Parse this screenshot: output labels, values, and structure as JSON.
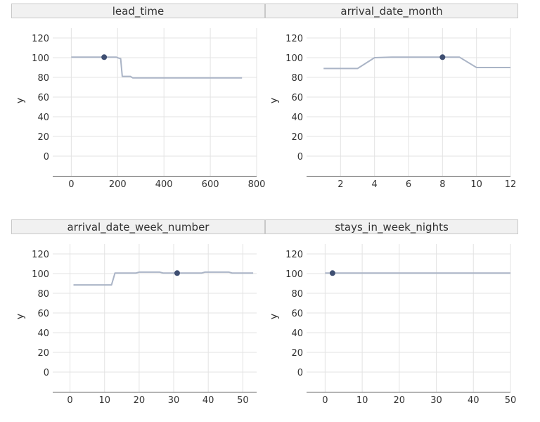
{
  "chart_data": [
    {
      "type": "line",
      "title": "lead_time",
      "xlabel": "",
      "ylabel": "y",
      "xlim": [
        -80,
        800
      ],
      "ylim": [
        -20,
        130
      ],
      "xticks": [
        "0",
        "200",
        "400",
        "600",
        "800"
      ],
      "yticks": [
        "0",
        "20",
        "40",
        "60",
        "80",
        "100",
        "120"
      ],
      "grid": true,
      "series": [
        {
          "x": [
            0,
            145,
            195,
            205,
            213,
            220,
            255,
            265,
            737
          ],
          "y": [
            100.5,
            100.5,
            100.5,
            99.5,
            99,
            81,
            81,
            79.5,
            79.5
          ]
        }
      ],
      "highlight": {
        "x": 142,
        "y": 100.5
      }
    },
    {
      "type": "line",
      "title": "arrival_date_month",
      "xlabel": "",
      "ylabel": "y",
      "xlim": [
        0,
        12
      ],
      "ylim": [
        -20,
        130
      ],
      "xticks": [
        "2",
        "4",
        "6",
        "8",
        "10",
        "12"
      ],
      "yticks": [
        "0",
        "20",
        "40",
        "60",
        "80",
        "100",
        "120"
      ],
      "grid": true,
      "series": [
        {
          "x": [
            1,
            3,
            4,
            5,
            6,
            7,
            8,
            9,
            10,
            11,
            12
          ],
          "y": [
            89,
            89,
            100,
            100.5,
            100.5,
            100.5,
            100.5,
            100.5,
            90,
            90,
            90
          ]
        }
      ],
      "highlight": {
        "x": 8,
        "y": 100.5
      }
    },
    {
      "type": "line",
      "title": "arrival_date_week_number",
      "xlabel": "",
      "ylabel": "y",
      "xlim": [
        -5,
        54
      ],
      "ylim": [
        -20,
        130
      ],
      "xticks": [
        "0",
        "10",
        "20",
        "30",
        "40",
        "50"
      ],
      "yticks": [
        "0",
        "20",
        "40",
        "60",
        "80",
        "100",
        "120"
      ],
      "grid": true,
      "series": [
        {
          "x": [
            1,
            12,
            13,
            19,
            20,
            26,
            27,
            38,
            39,
            46,
            47,
            53
          ],
          "y": [
            88.5,
            88.5,
            100.5,
            100.5,
            101.5,
            101.5,
            100.5,
            100.5,
            101.5,
            101.5,
            100.5,
            100.5
          ]
        }
      ],
      "highlight": {
        "x": 31,
        "y": 100.5
      }
    },
    {
      "type": "line",
      "title": "stays_in_week_nights",
      "xlabel": "",
      "ylabel": "y",
      "xlim": [
        -5,
        50
      ],
      "ylim": [
        -20,
        130
      ],
      "xticks": [
        "0",
        "10",
        "20",
        "30",
        "40",
        "50"
      ],
      "yticks": [
        "0",
        "20",
        "40",
        "60",
        "80",
        "100",
        "120"
      ],
      "grid": true,
      "series": [
        {
          "x": [
            0,
            50
          ],
          "y": [
            100.5,
            100.5
          ]
        }
      ],
      "highlight": {
        "x": 2,
        "y": 100.5
      }
    }
  ],
  "colors": {
    "line": "#aab4c6",
    "point": "#3f4f72",
    "grid": "#e3e3e3",
    "strip_bg": "#f1f1f1",
    "strip_border": "#c8c8c8",
    "text": "#333333"
  }
}
